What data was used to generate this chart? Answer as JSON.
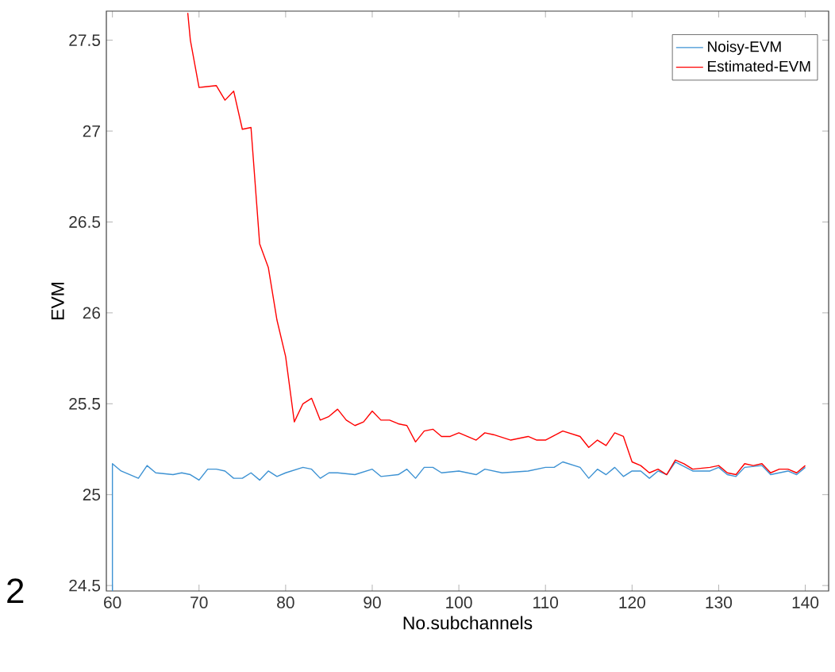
{
  "chart_data": {
    "type": "line",
    "xlabel": "No.subchannels",
    "ylabel": "EVM",
    "xlim": [
      59.3,
      142.7
    ],
    "ylim": [
      24.47,
      27.66
    ],
    "xticks": [
      60,
      70,
      80,
      90,
      100,
      110,
      120,
      130,
      140
    ],
    "yticks": [
      24.5,
      25,
      25.5,
      26,
      26.5,
      27,
      27.5
    ],
    "grid": false,
    "legend": "top right",
    "marker": "none",
    "line_style": "solid",
    "annotations": [
      "2"
    ],
    "series": [
      {
        "name": "Noisy-EVM",
        "color": "#3d92d3",
        "x": [
          60,
          60,
          61,
          63,
          64,
          65,
          67,
          68,
          69,
          70,
          71,
          72,
          73,
          74,
          75,
          76,
          77,
          78,
          79,
          80,
          82,
          83,
          84,
          85,
          86,
          88,
          90,
          91,
          93,
          94,
          95,
          96,
          97,
          98,
          100,
          102,
          103,
          105,
          108,
          109,
          110,
          111,
          112,
          114,
          115,
          116,
          117,
          118,
          119,
          120,
          121,
          122,
          123,
          124,
          125,
          127,
          129,
          130,
          131,
          132,
          133,
          135,
          136,
          138,
          139,
          140
        ],
        "values": [
          24.47,
          25.17,
          25.13,
          25.09,
          25.16,
          25.12,
          25.11,
          25.12,
          25.11,
          25.08,
          25.14,
          25.14,
          25.13,
          25.09,
          25.09,
          25.12,
          25.08,
          25.13,
          25.1,
          25.12,
          25.15,
          25.14,
          25.09,
          25.12,
          25.12,
          25.11,
          25.14,
          25.1,
          25.11,
          25.14,
          25.09,
          25.15,
          25.15,
          25.12,
          25.13,
          25.11,
          25.14,
          25.12,
          25.13,
          25.14,
          25.15,
          25.15,
          25.18,
          25.15,
          25.09,
          25.14,
          25.11,
          25.15,
          25.1,
          25.13,
          25.13,
          25.09,
          25.13,
          25.11,
          25.18,
          25.13,
          25.13,
          25.15,
          25.11,
          25.1,
          25.15,
          25.16,
          25.11,
          25.13,
          25.11,
          25.15
        ]
      },
      {
        "name": "Estimated-EVM",
        "color": "#ff0000",
        "x": [
          68.7,
          69,
          70,
          72,
          73,
          74,
          75,
          76,
          77,
          78,
          79,
          80,
          81,
          82,
          83,
          84,
          85,
          86,
          87,
          88,
          89,
          90,
          91,
          92,
          93,
          94,
          95,
          96,
          97,
          98,
          99,
          100,
          102,
          103,
          104,
          106,
          108,
          109,
          110,
          112,
          114,
          115,
          116,
          117,
          118,
          119,
          120,
          121,
          122,
          123,
          124,
          125,
          126,
          127,
          129,
          130,
          131,
          132,
          133,
          134,
          135,
          136,
          137,
          138,
          139,
          140
        ],
        "values": [
          27.65,
          27.5,
          27.24,
          27.25,
          27.17,
          27.22,
          27.01,
          27.02,
          26.38,
          26.25,
          25.96,
          25.76,
          25.4,
          25.5,
          25.53,
          25.41,
          25.43,
          25.47,
          25.41,
          25.38,
          25.4,
          25.46,
          25.41,
          25.41,
          25.39,
          25.38,
          25.29,
          25.35,
          25.36,
          25.32,
          25.32,
          25.34,
          25.3,
          25.34,
          25.33,
          25.3,
          25.32,
          25.3,
          25.3,
          25.35,
          25.32,
          25.26,
          25.3,
          25.27,
          25.34,
          25.32,
          25.18,
          25.16,
          25.12,
          25.14,
          25.11,
          25.19,
          25.17,
          25.14,
          25.15,
          25.16,
          25.12,
          25.11,
          25.17,
          25.16,
          25.17,
          25.12,
          25.14,
          25.14,
          25.12,
          25.16
        ]
      }
    ]
  }
}
